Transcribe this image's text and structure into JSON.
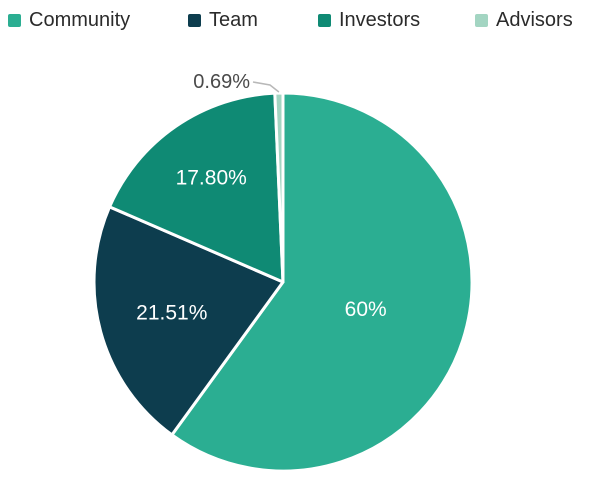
{
  "chart_data": {
    "type": "pie",
    "title": "",
    "legend_position": "top",
    "background": "#ffffff",
    "slice_border_color": "#ffffff",
    "callout_line_color": "#b8b8b8",
    "callout_text_color": "#4a4a4a",
    "inside_label_color": "#ffffff",
    "legend_text_color": "#2b2b2b",
    "start_angle_deg": 0,
    "direction": "clockwise",
    "slices": [
      {
        "label": "Community",
        "value": 60,
        "display": "60%",
        "color": "#2bae92",
        "label_placement": "inside"
      },
      {
        "label": "Team",
        "value": 21.51,
        "display": "21.51%",
        "color": "#0d3d4e",
        "label_placement": "inside"
      },
      {
        "label": "Investors",
        "value": 17.8,
        "display": "17.80%",
        "color": "#0f8a74",
        "label_placement": "inside"
      },
      {
        "label": "Advisors",
        "value": 0.69,
        "display": "0.69%",
        "color": "#a3d5c2",
        "label_placement": "callout"
      }
    ]
  }
}
